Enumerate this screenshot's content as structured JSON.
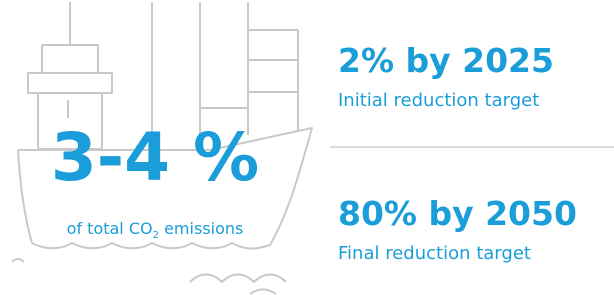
{
  "ship": {
    "headline": "3-4 %",
    "caption": {
      "before": "of total CO",
      "sub": "2",
      "after": "emissions"
    }
  },
  "targets": [
    {
      "title": "2% by 2025",
      "subtitle": "Initial reduction target"
    },
    {
      "title": "80% by 2050",
      "subtitle": "Final reduction target"
    }
  ]
}
